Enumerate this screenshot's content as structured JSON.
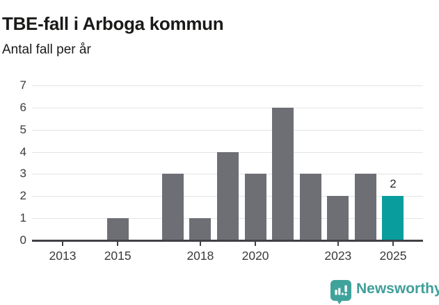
{
  "header": {
    "title": "TBE-fall i Arboga kommun",
    "subtitle": "Antal fall per år"
  },
  "chart_data": {
    "type": "bar",
    "title": "TBE-fall i Arboga kommun",
    "subtitle": "Antal fall per år",
    "categories": [
      2013,
      2014,
      2015,
      2016,
      2017,
      2018,
      2019,
      2020,
      2021,
      2022,
      2023,
      2024,
      2025
    ],
    "values": [
      0,
      0,
      1,
      0,
      3,
      1,
      4,
      3,
      6,
      3,
      2,
      3,
      2
    ],
    "xlabel": "",
    "ylabel": "Antal fall per år",
    "ylim": [
      0,
      7
    ],
    "yticks": [
      0,
      1,
      2,
      3,
      4,
      5,
      6,
      7
    ],
    "xtick_years": [
      2013,
      2015,
      2018,
      2020,
      2023,
      2025
    ],
    "grid": "horizontal",
    "legend": "none",
    "highlight": {
      "category": 2025,
      "label": "2"
    },
    "colors": {
      "bar": "#6e6e75",
      "highlight": "#0a9d9d",
      "gridline": "#e4e4e4",
      "axis": "#404145",
      "tick_label": "#3a3a3a"
    }
  },
  "footer": {
    "brand": "Newsworthy",
    "brand_color": "#3f9f9a",
    "logo_icon": "newsworthy-speech-bubble-bar-chart-icon"
  }
}
